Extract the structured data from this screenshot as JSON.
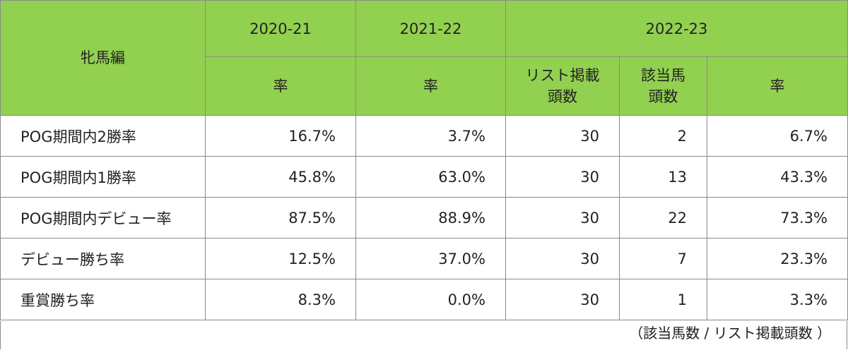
{
  "table": {
    "corner": "牝馬編",
    "groups": [
      "2020-21",
      "2021-22",
      "2022-23"
    ],
    "subheaders": [
      [
        "率"
      ],
      [
        "率"
      ],
      [
        "リスト掲載",
        "頭数"
      ],
      [
        "該当馬",
        "頭数"
      ],
      [
        "率"
      ]
    ],
    "rows": [
      [
        "POG期間内2勝率",
        "16.7%",
        "3.7%",
        "30",
        "2",
        "6.7%"
      ],
      [
        "POG期間内1勝率",
        "45.8%",
        "63.0%",
        "30",
        "13",
        "43.3%"
      ],
      [
        "POG期間内デビュー率",
        "87.5%",
        "88.9%",
        "30",
        "22",
        "73.3%"
      ],
      [
        "デビュー勝ち率",
        "12.5%",
        "37.0%",
        "30",
        "7",
        "23.3%"
      ],
      [
        "重賞勝ち率",
        "8.3%",
        "0.0%",
        "30",
        "1",
        "3.3%"
      ]
    ],
    "note": "（該当馬数 / リスト掲載頭数 ）"
  }
}
